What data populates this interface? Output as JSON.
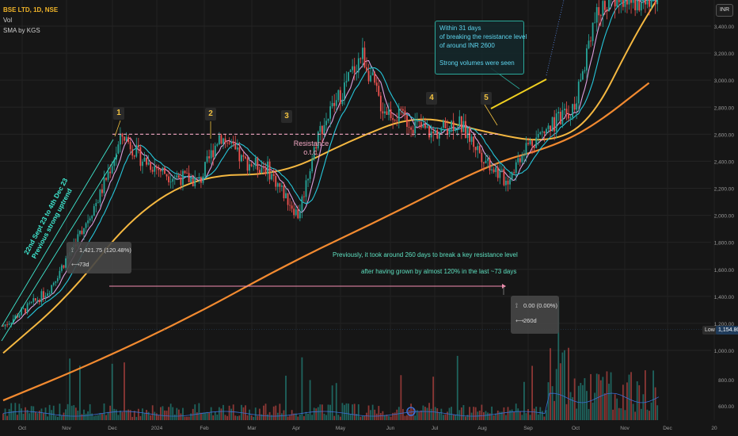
{
  "legend": {
    "symbol": "BSE LTD, 1D, NSE",
    "vol": "Vol",
    "sma": "SMA by KGS"
  },
  "currency_badge": "INR",
  "low_tag": {
    "label": "Low",
    "value": "1,154.80"
  },
  "colors": {
    "up": "#26a69a",
    "down": "#ef5350",
    "sma_fast": "#e0a0e0",
    "sma_mid": "#26c6da",
    "sma_slow": "#f5b841",
    "sma_200": "#f28a30",
    "resistance": "#f2a7c3",
    "arrow": "#f48fb1"
  },
  "annotations": {
    "trend_text_1": "22nd Sept 23 to 4th Dec 23",
    "trend_text_2": "Previous strong uptrend",
    "resistance_1": "Resistance",
    "resistance_2": "o.t.c.",
    "callout_lines": [
      "Within 31 days",
      "of breaking the resistance level",
      "of around INR 2600",
      "",
      "Strong volumes were seen"
    ],
    "note_1": "Previously, it took around 260 days to break a key resistance level",
    "note_2": "after having grown by almost 120% in the last ~73 days",
    "waves": [
      "1",
      "2",
      "3",
      "4",
      "5"
    ]
  },
  "measure_1": {
    "change": "1,421.75 (120.48%)",
    "bars": "73d"
  },
  "measure_2": {
    "change": "0.00 (0.00%)",
    "bars": "260d"
  },
  "chart_data": {
    "type": "candlestick",
    "title": "BSE LTD, 1D, NSE",
    "x_tick_labels": [
      "Oct",
      "Nov",
      "Dec",
      "2024",
      "Feb",
      "Mar",
      "Apr",
      "May",
      "Jun",
      "Jul",
      "Aug",
      "Sep",
      "Oct",
      "Nov",
      "Dec",
      "20"
    ],
    "y_tick_labels": [
      "3,400.00",
      "3,200.00",
      "3,000.00",
      "2,800.00",
      "2,600.00",
      "2,400.00",
      "2,200.00",
      "2,000.00",
      "1,800.00",
      "1,600.00",
      "1,400.00",
      "1,200.00",
      "1,000.00"
    ],
    "volume_tick_labels": [
      "800.00",
      "600.00"
    ],
    "ylim": [
      1000,
      3500
    ],
    "resistance_level": 2600,
    "close_path": [
      {
        "d": "2023-09-22",
        "v": 1180
      },
      {
        "d": "2023-10-05",
        "v": 1300
      },
      {
        "d": "2023-10-20",
        "v": 1450
      },
      {
        "d": "2023-11-05",
        "v": 1800
      },
      {
        "d": "2023-11-20",
        "v": 2150
      },
      {
        "d": "2023-12-04",
        "v": 2600
      },
      {
        "d": "2023-12-15",
        "v": 2420
      },
      {
        "d": "2024-01-01",
        "v": 2300
      },
      {
        "d": "2024-01-20",
        "v": 2250
      },
      {
        "d": "2024-02-01",
        "v": 2600
      },
      {
        "d": "2024-02-15",
        "v": 2400
      },
      {
        "d": "2024-03-01",
        "v": 2350
      },
      {
        "d": "2024-03-20",
        "v": 2000
      },
      {
        "d": "2024-04-01",
        "v": 2600
      },
      {
        "d": "2024-04-15",
        "v": 2900
      },
      {
        "d": "2024-04-28",
        "v": 3200
      },
      {
        "d": "2024-05-10",
        "v": 2800
      },
      {
        "d": "2024-05-25",
        "v": 2700
      },
      {
        "d": "2024-06-10",
        "v": 2600
      },
      {
        "d": "2024-06-25",
        "v": 2700
      },
      {
        "d": "2024-07-10",
        "v": 2450
      },
      {
        "d": "2024-07-25",
        "v": 2250
      },
      {
        "d": "2024-08-05",
        "v": 2500
      },
      {
        "d": "2024-08-20",
        "v": 2650
      },
      {
        "d": "2024-09-05",
        "v": 2800
      },
      {
        "d": "2024-09-15",
        "v": 3400
      },
      {
        "d": "2024-09-25",
        "v": 3600
      }
    ],
    "sma_200": [
      {
        "d": "2023-09-22",
        "v": 630
      },
      {
        "d": "2023-11-15",
        "v": 900
      },
      {
        "d": "2024-01-15",
        "v": 1250
      },
      {
        "d": "2024-03-15",
        "v": 1650
      },
      {
        "d": "2024-05-15",
        "v": 2000
      },
      {
        "d": "2024-07-15",
        "v": 2380
      },
      {
        "d": "2024-08-20",
        "v": 2500
      },
      {
        "d": "2024-09-15",
        "v": 2650
      },
      {
        "d": "2024-10-20",
        "v": 2980
      }
    ],
    "sma_50": [
      {
        "d": "2023-09-22",
        "v": 980
      },
      {
        "d": "2023-11-01",
        "v": 1400
      },
      {
        "d": "2023-12-10",
        "v": 2000
      },
      {
        "d": "2024-01-20",
        "v": 2300
      },
      {
        "d": "2024-03-10",
        "v": 2300
      },
      {
        "d": "2024-04-20",
        "v": 2550
      },
      {
        "d": "2024-06-01",
        "v": 2750
      },
      {
        "d": "2024-07-10",
        "v": 2620
      },
      {
        "d": "2024-08-20",
        "v": 2530
      },
      {
        "d": "2024-09-15",
        "v": 2700
      },
      {
        "d": "2024-10-10",
        "v": 3300
      },
      {
        "d": "2024-10-25",
        "v": 3600
      }
    ]
  }
}
